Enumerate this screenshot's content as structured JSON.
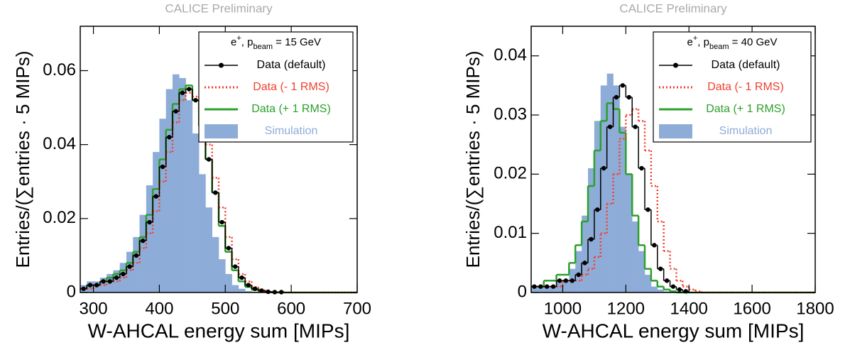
{
  "chart_data": [
    {
      "type": "histogram",
      "title": "CALICE Preliminary",
      "x_label": "W-AHCAL energy sum [MIPs]",
      "y_label": "Entries/(∑entries · 5 MIPs)",
      "legend_title": [
        "e",
        "+",
        ", p",
        "beam",
        " = 15 GeV"
      ],
      "bins": [
        280,
        290,
        300,
        310,
        320,
        330,
        340,
        350,
        360,
        370,
        380,
        390,
        400,
        410,
        420,
        430,
        440,
        450,
        460,
        470,
        480,
        490,
        500,
        510,
        520,
        530,
        540,
        550,
        560,
        570,
        580,
        590,
        600,
        610,
        620,
        630,
        640,
        650,
        660,
        670,
        680,
        690,
        700
      ],
      "series": [
        {
          "name": "Data (default)",
          "color": "#000000",
          "style": "markers",
          "values": [
            0.001,
            0.002,
            0.002,
            0.003,
            0.003,
            0.004,
            0.005,
            0.007,
            0.01,
            0.014,
            0.019,
            0.026,
            0.034,
            0.042,
            0.049,
            0.054,
            0.055,
            0.052,
            0.045,
            0.036,
            0.027,
            0.019,
            0.012,
            0.007,
            0.004,
            0.002,
            0.001,
            0.0005,
            0.0002,
            0.0001,
            0.0001,
            0,
            0,
            0,
            0,
            0,
            0,
            0,
            0,
            0,
            0,
            0
          ]
        },
        {
          "name": "Data (- 1 RMS)",
          "color": "#f0402f",
          "style": "dotted",
          "values": [
            0.001,
            0.001,
            0.002,
            0.002,
            0.003,
            0.003,
            0.004,
            0.006,
            0.008,
            0.012,
            0.016,
            0.022,
            0.03,
            0.038,
            0.046,
            0.052,
            0.054,
            0.053,
            0.048,
            0.04,
            0.031,
            0.023,
            0.015,
            0.009,
            0.005,
            0.003,
            0.0015,
            0.0008,
            0.0004,
            0.0002,
            0.0001,
            0,
            0,
            0,
            0,
            0,
            0,
            0,
            0,
            0,
            0,
            0
          ]
        },
        {
          "name": "Data (+ 1 RMS)",
          "color": "#2ca02c",
          "style": "solid",
          "values": [
            0.001,
            0.002,
            0.002,
            0.003,
            0.004,
            0.005,
            0.006,
            0.008,
            0.011,
            0.015,
            0.021,
            0.028,
            0.036,
            0.044,
            0.051,
            0.055,
            0.056,
            0.052,
            0.045,
            0.036,
            0.027,
            0.018,
            0.011,
            0.006,
            0.003,
            0.0015,
            0.0007,
            0.0003,
            0.0001,
            0,
            0,
            0,
            0,
            0,
            0,
            0,
            0,
            0,
            0,
            0,
            0,
            0
          ]
        },
        {
          "name": "Simulation",
          "color": "#8eacd8",
          "style": "filled",
          "values": [
            0.002,
            0.003,
            0.003,
            0.004,
            0.005,
            0.006,
            0.008,
            0.011,
            0.015,
            0.021,
            0.029,
            0.038,
            0.047,
            0.055,
            0.059,
            0.058,
            0.052,
            0.043,
            0.032,
            0.023,
            0.015,
            0.009,
            0.005,
            0.002,
            0.001,
            0.0004,
            0.0002,
            0.0001,
            0,
            0,
            0,
            0,
            0,
            0,
            0,
            0,
            0,
            0,
            0,
            0,
            0,
            0
          ]
        }
      ],
      "xlim": [
        280,
        700
      ],
      "ylim": [
        0,
        0.072
      ],
      "xticks": [
        300,
        400,
        500,
        600,
        700
      ],
      "yticks": [
        0,
        0.02,
        0.04,
        0.06
      ]
    },
    {
      "type": "histogram",
      "title": "CALICE Preliminary",
      "x_label": "W-AHCAL energy sum [MIPs]",
      "y_label": "Entries/(∑entries · 5 MIPs)",
      "legend_title": [
        "e",
        "+",
        ", p",
        "beam",
        " = 40 GeV"
      ],
      "bins": [
        900,
        920,
        940,
        960,
        980,
        1000,
        1020,
        1040,
        1060,
        1080,
        1100,
        1120,
        1140,
        1160,
        1180,
        1200,
        1220,
        1240,
        1260,
        1280,
        1300,
        1320,
        1340,
        1360,
        1380,
        1400,
        1420,
        1440,
        1460,
        1480,
        1500,
        1520,
        1540,
        1560,
        1580,
        1600,
        1620,
        1640,
        1660,
        1680,
        1700,
        1720,
        1740,
        1760,
        1780,
        1800
      ],
      "series": [
        {
          "name": "Data (default)",
          "color": "#000000",
          "style": "markers",
          "values": [
            0.001,
            0.001,
            0.001,
            0.001,
            0.002,
            0.002,
            0.002,
            0.003,
            0.005,
            0.009,
            0.014,
            0.021,
            0.028,
            0.033,
            0.035,
            0.033,
            0.028,
            0.021,
            0.014,
            0.008,
            0.004,
            0.002,
            0.001,
            0.0005,
            0.0002,
            0,
            0,
            0,
            0,
            0,
            0,
            0,
            0,
            0,
            0,
            0,
            0,
            0,
            0,
            0,
            0,
            0,
            0,
            0,
            0
          ]
        },
        {
          "name": "Data (- 1 RMS)",
          "color": "#f0402f",
          "style": "dotted",
          "values": [
            0.001,
            0.001,
            0.001,
            0.001,
            0.001,
            0.002,
            0.002,
            0.002,
            0.003,
            0.004,
            0.006,
            0.01,
            0.015,
            0.02,
            0.026,
            0.03,
            0.031,
            0.029,
            0.024,
            0.018,
            0.012,
            0.007,
            0.004,
            0.002,
            0.001,
            0.0005,
            0.0002,
            0,
            0,
            0,
            0,
            0,
            0,
            0,
            0,
            0,
            0,
            0,
            0,
            0,
            0,
            0,
            0,
            0,
            0
          ]
        },
        {
          "name": "Data (+ 1 RMS)",
          "color": "#2ca02c",
          "style": "solid",
          "values": [
            0.001,
            0.001,
            0.002,
            0.002,
            0.003,
            0.003,
            0.005,
            0.008,
            0.012,
            0.018,
            0.024,
            0.029,
            0.032,
            0.031,
            0.027,
            0.02,
            0.013,
            0.008,
            0.004,
            0.002,
            0.001,
            0.0005,
            0.0002,
            0,
            0,
            0,
            0,
            0,
            0,
            0,
            0,
            0,
            0,
            0,
            0,
            0,
            0,
            0,
            0,
            0,
            0,
            0,
            0,
            0,
            0
          ]
        },
        {
          "name": "Simulation",
          "color": "#8eacd8",
          "style": "filled",
          "values": [
            0.001,
            0.001,
            0.001,
            0.001,
            0.002,
            0.002,
            0.004,
            0.007,
            0.013,
            0.021,
            0.029,
            0.035,
            0.037,
            0.035,
            0.028,
            0.02,
            0.012,
            0.007,
            0.003,
            0.001,
            0.0005,
            0.0002,
            0.0001,
            0,
            0,
            0,
            0,
            0,
            0,
            0,
            0,
            0,
            0,
            0,
            0,
            0,
            0,
            0,
            0,
            0,
            0,
            0,
            0,
            0,
            0
          ]
        }
      ],
      "xlim": [
        900,
        1800
      ],
      "ylim": [
        0,
        0.045
      ],
      "xticks": [
        1000,
        1200,
        1400,
        1600,
        1800
      ],
      "yticks": [
        0,
        0.01,
        0.02,
        0.03,
        0.04
      ]
    }
  ]
}
